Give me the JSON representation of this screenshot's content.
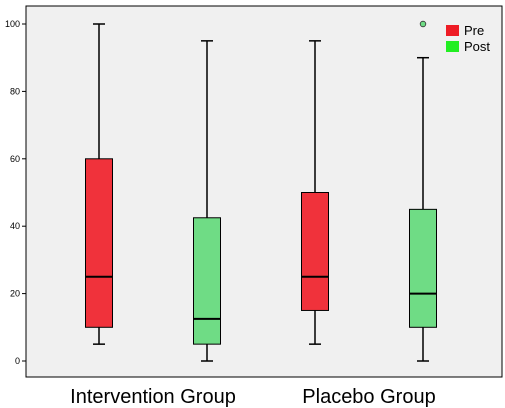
{
  "chart_data": {
    "type": "boxplot",
    "title": "",
    "xlabel": "",
    "ylabel": "",
    "ylim": [
      0,
      100
    ],
    "yticks": [
      0,
      20,
      40,
      60,
      80,
      100
    ],
    "grid": false,
    "legend_position": "top-right",
    "categories": [
      "Intervention Group",
      "Placebo Group"
    ],
    "series": [
      {
        "name": "Pre",
        "color": "#f0323b",
        "boxes": [
          {
            "min": 5,
            "q1": 10,
            "median": 25,
            "q3": 60,
            "max": 100,
            "outliers": []
          },
          {
            "min": 5,
            "q1": 15,
            "median": 25,
            "q3": 50,
            "max": 95,
            "outliers": []
          }
        ]
      },
      {
        "name": "Post",
        "color": "#6fdc85",
        "boxes": [
          {
            "min": 0,
            "q1": 5,
            "median": 12.5,
            "q3": 42.5,
            "max": 95,
            "outliers": []
          },
          {
            "min": 0,
            "q1": 10,
            "median": 20,
            "q3": 45,
            "max": 90,
            "outliers": [
              100
            ]
          }
        ]
      }
    ],
    "legend_colors": {
      "Pre": "#ee1c25",
      "Post": "#22ee22"
    }
  }
}
